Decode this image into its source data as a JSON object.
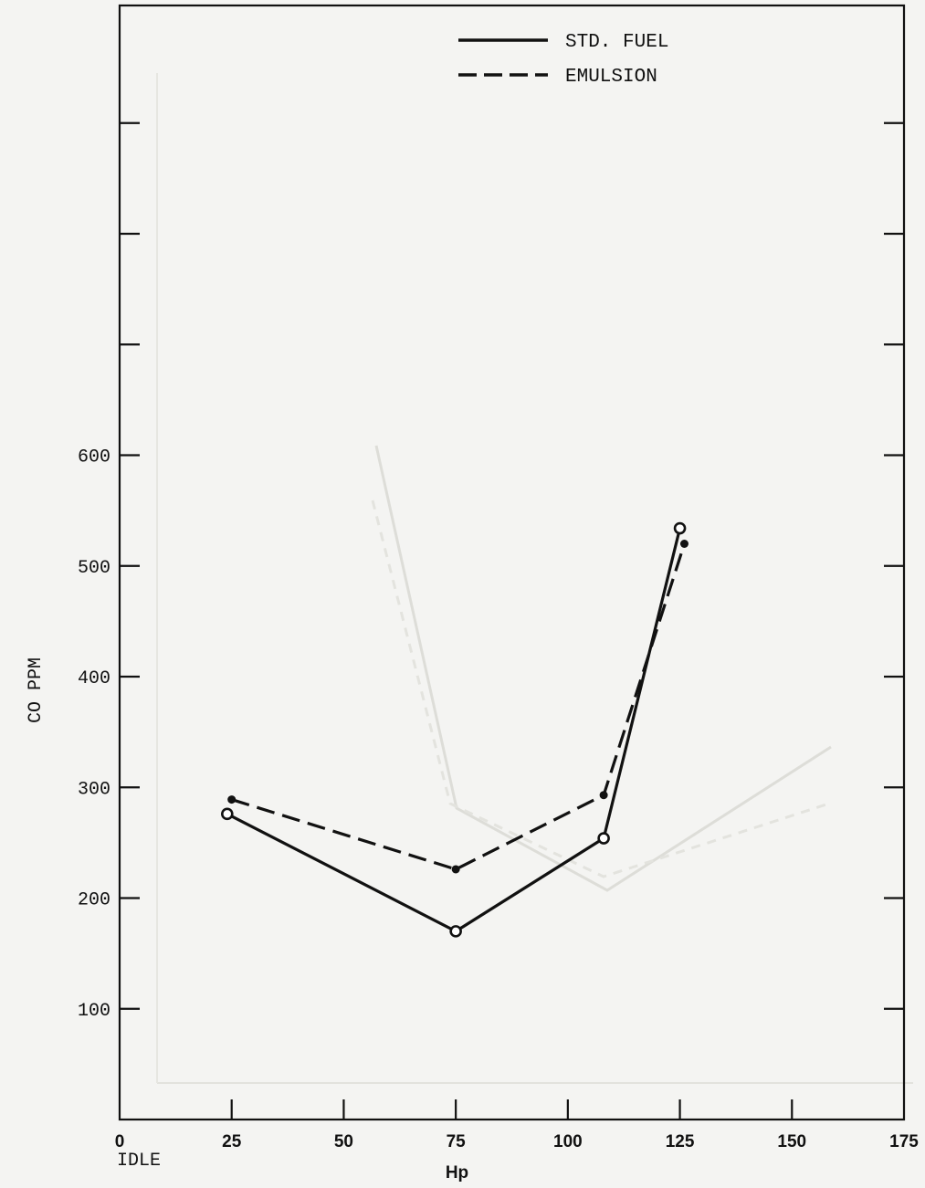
{
  "chart_data": {
    "type": "line",
    "title": "",
    "xlabel": "Hp",
    "ylabel": "CO PPM",
    "xlim": [
      0,
      175
    ],
    "ylim": [
      0,
      1000
    ],
    "x_ticks": [
      0,
      25,
      50,
      75,
      100,
      125,
      150,
      175
    ],
    "x_tick_labels": [
      "0",
      "25",
      "50",
      "75",
      "100",
      "125",
      "150",
      "175"
    ],
    "x_zero_sublabel": "IDLE",
    "y_ticks": [
      100,
      200,
      300,
      400,
      500,
      600,
      700,
      800,
      900
    ],
    "y_tick_labels": [
      "100",
      "200",
      "300",
      "400",
      "500",
      "600",
      "",
      "",
      ""
    ],
    "grid": false,
    "legend_position": "top-center",
    "series": [
      {
        "name": "STD. FUEL",
        "style": "solid",
        "marker": "open-circle",
        "color": "#111111",
        "points": [
          [
            24,
            276
          ],
          [
            75,
            170
          ],
          [
            108,
            254
          ],
          [
            125,
            534
          ]
        ]
      },
      {
        "name": "EMULSION",
        "style": "dashed",
        "marker": "filled-dot",
        "color": "#111111",
        "points": [
          [
            25,
            289
          ],
          [
            75,
            226
          ],
          [
            108,
            293
          ],
          [
            126,
            520
          ]
        ]
      }
    ]
  }
}
